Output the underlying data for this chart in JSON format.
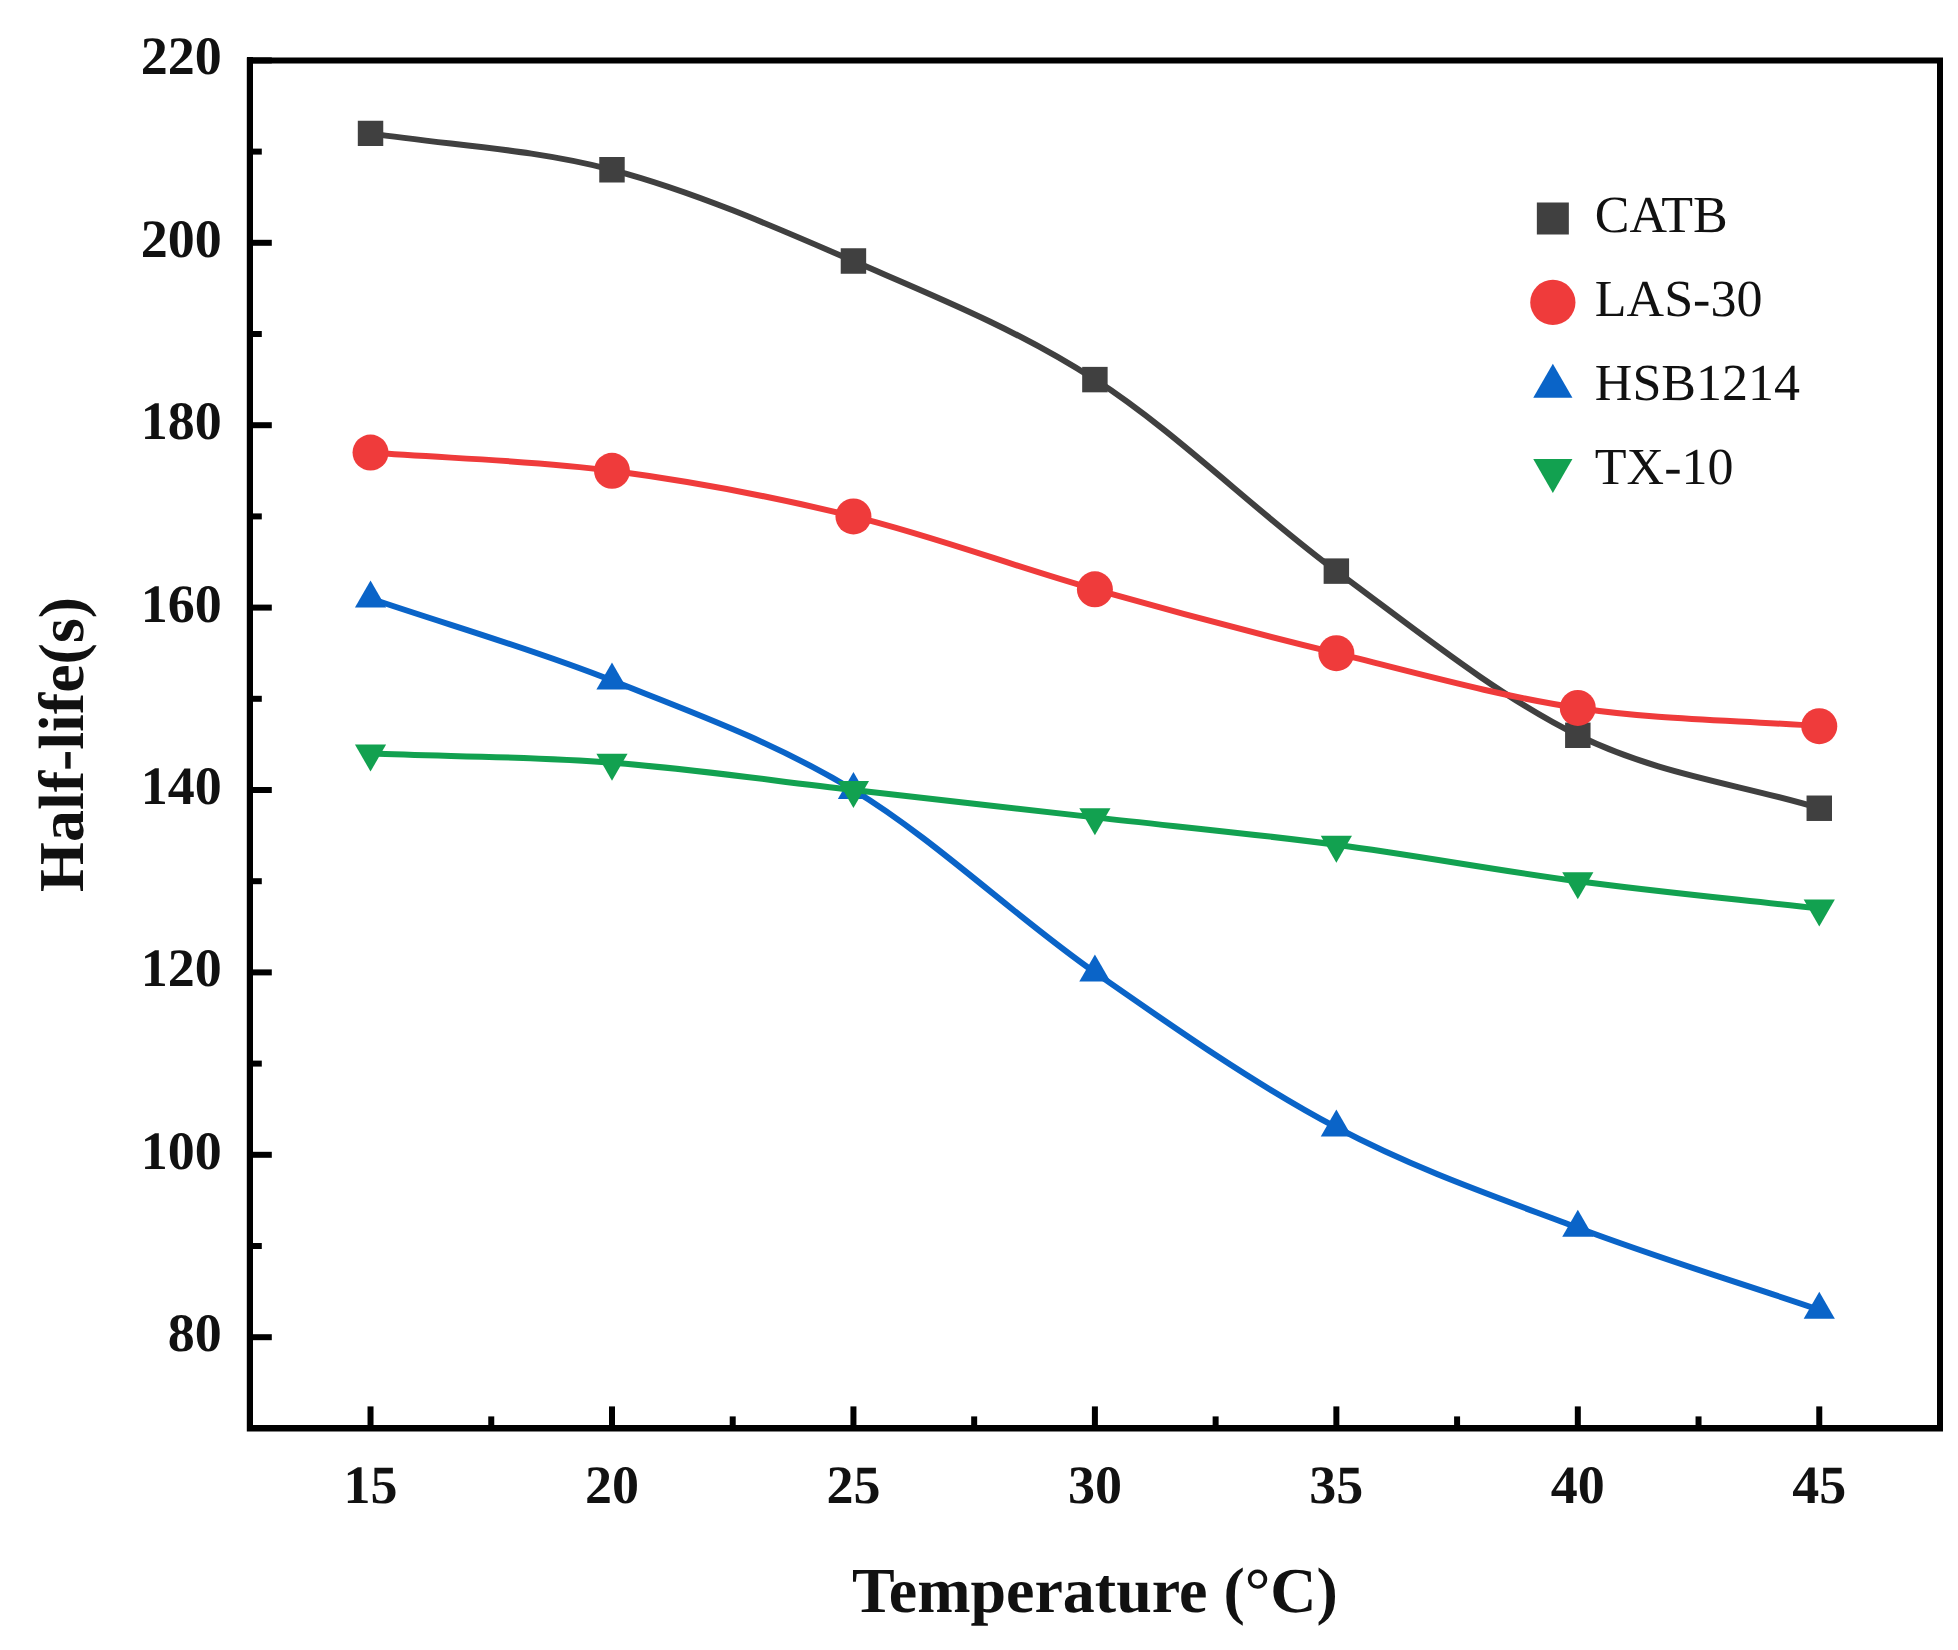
{
  "chart_data": {
    "type": "line",
    "xlabel": "Temperature (°C)",
    "ylabel": "Half-life(s)",
    "x": [
      15,
      20,
      25,
      30,
      35,
      40,
      45
    ],
    "xlim": [
      12.5,
      47.5
    ],
    "xticks": [
      15,
      {
        "value": 17.5,
        "label": null
      },
      20,
      {
        "value": 22.5,
        "label": null
      },
      25,
      {
        "value": 27.5,
        "label": null
      },
      30,
      {
        "value": 32.5,
        "label": null
      },
      35,
      {
        "value": 37.5,
        "label": null
      },
      40,
      {
        "value": 42.5,
        "label": null
      },
      45
    ],
    "ylim": [
      70,
      220
    ],
    "yticks": [
      80,
      {
        "value": 90,
        "label": null
      },
      100,
      {
        "value": 110,
        "label": null
      },
      120,
      {
        "value": 130,
        "label": null
      },
      140,
      {
        "value": 150,
        "label": null
      },
      160,
      {
        "value": 170,
        "label": null
      },
      180,
      {
        "value": 190,
        "label": null
      },
      200,
      {
        "value": 210,
        "label": null
      },
      220
    ],
    "legend": "top right",
    "grid": false,
    "line_style": "solid",
    "series": [
      {
        "name": "CATB",
        "color": "#404040",
        "marker": "square",
        "values": [
          212,
          208,
          198,
          185,
          164,
          146,
          138
        ]
      },
      {
        "name": "LAS-30",
        "color": "#ef3b3b",
        "marker": "circle",
        "values": [
          177,
          175,
          170,
          162,
          155,
          149,
          147
        ]
      },
      {
        "name": "HSB1214",
        "color": "#0a64c8",
        "marker": "triangle",
        "values": [
          161,
          152,
          140,
          120,
          103,
          92,
          83
        ]
      },
      {
        "name": "TX-10",
        "color": "#12a150",
        "marker": "triangle-down",
        "values": [
          144,
          143,
          140,
          137,
          134,
          130,
          127
        ]
      }
    ]
  }
}
